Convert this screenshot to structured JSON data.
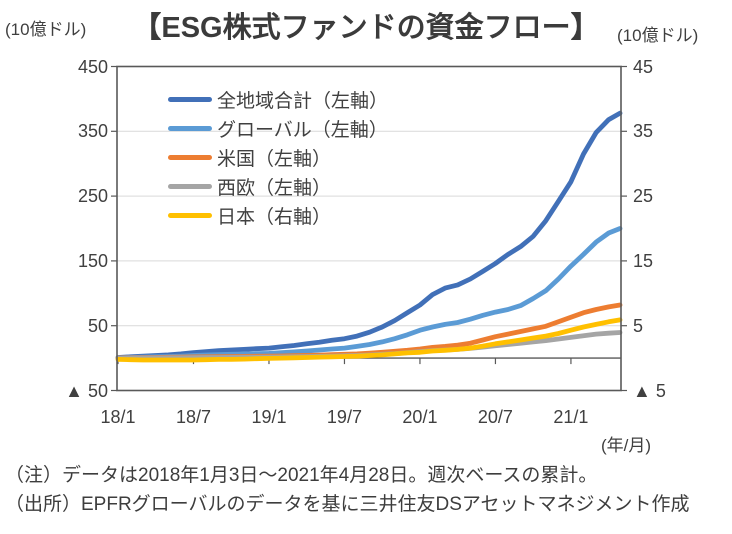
{
  "header": {
    "left_unit": "(10億ドル)",
    "title": "【ESG株式ファンドの資金フロー】",
    "right_unit": "(10億ドル)"
  },
  "chart_data": {
    "type": "line",
    "title": "ESG株式ファンドの資金フロー",
    "x_unit_label": "(年/月)",
    "grid": true,
    "legend_position": "top-left-inside",
    "x_tick_labels": [
      "18/1",
      "18/7",
      "19/1",
      "19/7",
      "20/1",
      "20/7",
      "21/1"
    ],
    "x_tick_months": [
      0,
      6,
      12,
      18,
      24,
      30,
      36
    ],
    "x_month_index": [
      0,
      1,
      2,
      3,
      4,
      5,
      6,
      7,
      8,
      9,
      10,
      11,
      12,
      13,
      14,
      15,
      16,
      17,
      18,
      19,
      20,
      21,
      22,
      23,
      24,
      25,
      26,
      27,
      28,
      29,
      30,
      31,
      32,
      33,
      34,
      35,
      36,
      37,
      38,
      39,
      39.9
    ],
    "x_range_note": "月次目盛: 0 = 2018年1月, 39.9 = 2021年4月28日",
    "left_axis": {
      "unit": "10億ドル",
      "min": -50,
      "max": 450,
      "ticks": [
        450,
        350,
        250,
        150,
        50,
        -50
      ],
      "tick_labels": [
        "450",
        "350",
        "250",
        "150",
        "50",
        "▲ 50"
      ]
    },
    "right_axis": {
      "unit": "10億ドル",
      "min": -5,
      "max": 45,
      "ticks": [
        45,
        35,
        25,
        15,
        5,
        -5
      ],
      "tick_labels": [
        "45",
        "35",
        "25",
        "15",
        "5",
        "▲ 5"
      ]
    },
    "series": [
      {
        "key": "total",
        "name": "全地域合計（左軸）",
        "axis": "left",
        "color": "#4170B8",
        "values": [
          1,
          2,
          3,
          4,
          5,
          6.5,
          8.5,
          10,
          11.5,
          12.5,
          13.5,
          14.5,
          15.5,
          17.5,
          19.5,
          22,
          24.5,
          27.5,
          30,
          34,
          40,
          48,
          58,
          70,
          82,
          98,
          108,
          113,
          122,
          134,
          146,
          160,
          172,
          188,
          212,
          242,
          272,
          315,
          348,
          368,
          378
        ]
      },
      {
        "key": "global",
        "name": "グローバル（左軸）",
        "axis": "left",
        "color": "#5B9BD5",
        "values": [
          0.5,
          1,
          1.5,
          2,
          2.5,
          3,
          4,
          4.8,
          5.3,
          5.8,
          6.3,
          6.8,
          7.3,
          8.3,
          9.5,
          11,
          12.5,
          14,
          15.5,
          18,
          21,
          25,
          30,
          36,
          43,
          48,
          52,
          55,
          60,
          66,
          71,
          75,
          81,
          92,
          104,
          122,
          142,
          160,
          179,
          193,
          200
        ]
      },
      {
        "key": "us",
        "name": "米国（左軸）",
        "axis": "left",
        "color": "#ED7D31",
        "values": [
          0.3,
          0.5,
          0.8,
          1,
          1.2,
          1.5,
          1.8,
          2,
          2.2,
          2.4,
          2.6,
          2.8,
          3,
          3.3,
          3.7,
          4.1,
          4.6,
          5.2,
          5.8,
          6.5,
          7.5,
          9,
          10.5,
          12,
          14,
          16.5,
          18,
          20,
          23,
          28,
          33,
          37,
          41,
          45,
          49,
          56,
          63,
          70,
          75,
          79,
          82
        ]
      },
      {
        "key": "western-europe",
        "name": "西欧（左軸）",
        "axis": "left",
        "color": "#A5A5A5",
        "values": [
          0,
          0.1,
          0.2,
          0.3,
          0.4,
          0.5,
          0.7,
          0.9,
          1,
          1.1,
          1.2,
          1.3,
          1.5,
          1.7,
          2,
          2.3,
          2.7,
          3.1,
          3.5,
          4,
          4.8,
          5.8,
          7,
          8.5,
          10,
          11.5,
          12.5,
          13.5,
          15,
          17,
          19,
          21,
          23,
          25,
          27,
          29.5,
          32,
          34.5,
          37,
          38.5,
          39.5
        ]
      },
      {
        "key": "japan",
        "name": "日本（右軸）",
        "axis": "right",
        "color": "#FFC000",
        "values": [
          -0.2,
          -0.25,
          -0.3,
          -0.3,
          -0.3,
          -0.3,
          -0.3,
          -0.25,
          -0.2,
          -0.2,
          -0.15,
          -0.1,
          -0.05,
          0,
          0.05,
          0.1,
          0.15,
          0.2,
          0.25,
          0.3,
          0.4,
          0.5,
          0.65,
          0.8,
          0.9,
          1.1,
          1.2,
          1.35,
          1.55,
          1.85,
          2.2,
          2.5,
          2.8,
          3.1,
          3.4,
          3.8,
          4.3,
          4.8,
          5.2,
          5.6,
          5.9
        ]
      }
    ],
    "colors": {
      "grid": "#D9D9D9",
      "axis_border": "#595959",
      "text": "#404040"
    }
  },
  "footnotes": {
    "note": "（注）データは2018年1月3日～2021年4月28日。週次ベースの累計。",
    "source": "（出所）EPFRグローバルのデータを基に三井住友DSアセットマネジメント作成"
  }
}
